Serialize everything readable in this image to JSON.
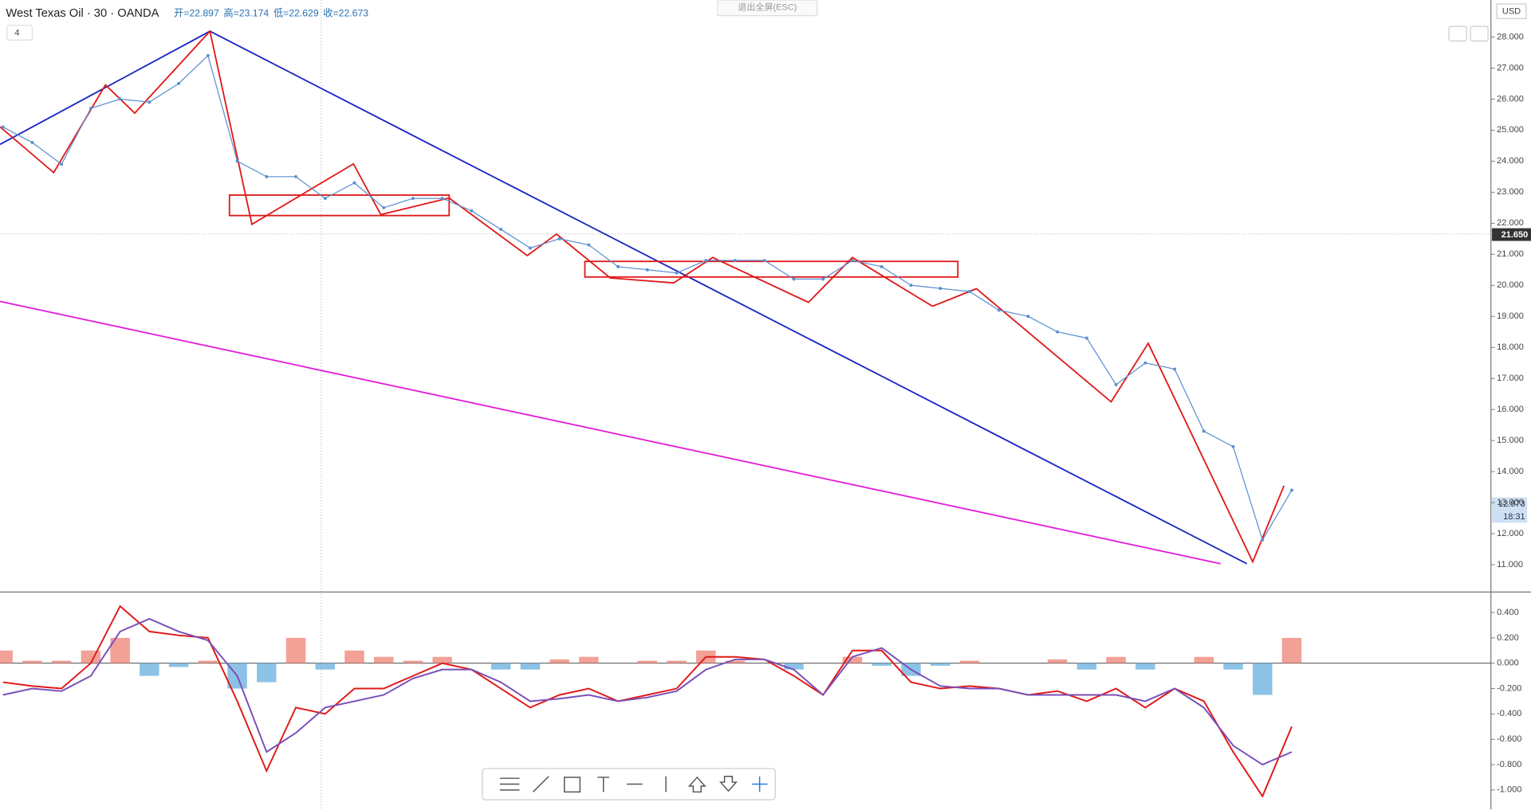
{
  "header": {
    "title": "West Texas Oil · 30 · OANDA",
    "ohlc": [
      "开=22.897",
      "高=23.174",
      "低=22.629",
      "收=22.673"
    ],
    "indicators": "4",
    "exit_fullscreen": "退出全屏(ESC)",
    "currency": "USD",
    "crosshair_price": "21.650",
    "last_price": "12.973",
    "countdown": "18:31"
  },
  "chart_data": [
    {
      "type": "line",
      "title": "West Texas Oil",
      "color": "#5b8fd1",
      "ylim": [
        10.12,
        29.19
      ],
      "yticks": [
        {
          "value": 11,
          "label": "11.000"
        },
        {
          "value": 12,
          "label": "12.000"
        },
        {
          "value": 13,
          "label": "13.000"
        },
        {
          "value": 14,
          "label": "14.000"
        },
        {
          "value": 15,
          "label": "15.000"
        },
        {
          "value": 16,
          "label": "16.000"
        },
        {
          "value": 17,
          "label": "17.000"
        },
        {
          "value": 18,
          "label": "18.000"
        },
        {
          "value": 19,
          "label": "19.000"
        },
        {
          "value": 20,
          "label": "20.000"
        },
        {
          "value": 21,
          "label": "21.000"
        },
        {
          "value": 22,
          "label": "22.000"
        },
        {
          "value": 23,
          "label": "23.000"
        },
        {
          "value": 24,
          "label": "24.000"
        },
        {
          "value": 25,
          "label": "25.000"
        },
        {
          "value": 26,
          "label": "26.000"
        },
        {
          "value": 27,
          "label": "27.000"
        },
        {
          "value": 28,
          "label": "28.000"
        }
      ],
      "values": [
        25.1,
        24.6,
        23.9,
        25.7,
        26.0,
        25.9,
        26.5,
        27.4,
        24.0,
        23.5,
        23.5,
        22.8,
        23.3,
        22.5,
        22.8,
        22.8,
        22.4,
        21.8,
        21.2,
        21.5,
        21.3,
        20.6,
        20.5,
        20.4,
        20.8,
        20.8,
        20.8,
        20.2,
        20.2,
        20.8,
        20.6,
        20.0,
        19.9,
        19.8,
        19.2,
        19.0,
        18.5,
        18.3,
        16.8,
        17.5,
        17.3,
        15.3,
        14.8,
        11.8,
        13.4
      ]
    },
    {
      "type": "macd",
      "ylim": [
        -1.154,
        0.554
      ],
      "yticks": [
        {
          "value": 0.4,
          "label": "0.400"
        },
        {
          "value": 0.2,
          "label": "0.200"
        },
        {
          "value": 0,
          "label": "0.000"
        },
        {
          "value": -0.2,
          "label": "-0.200"
        },
        {
          "value": -0.4,
          "label": "-0.400"
        },
        {
          "value": -0.6,
          "label": "-0.600"
        },
        {
          "value": -0.8,
          "label": "-0.800"
        },
        {
          "value": -1,
          "label": "-1.000"
        }
      ],
      "series": [
        {
          "color": "#e01919",
          "values": [
            -0.15,
            -0.18,
            -0.2,
            0.0,
            0.45,
            0.25,
            0.22,
            0.2,
            -0.3,
            -0.85,
            -0.35,
            -0.4,
            -0.2,
            -0.2,
            -0.1,
            0.0,
            -0.05,
            -0.2,
            -0.35,
            -0.25,
            -0.2,
            -0.3,
            -0.25,
            -0.2,
            0.05,
            0.05,
            0.03,
            -0.1,
            -0.25,
            0.1,
            0.1,
            -0.15,
            -0.2,
            -0.18,
            -0.2,
            -0.25,
            -0.22,
            -0.3,
            -0.2,
            -0.35,
            -0.2,
            -0.3,
            -0.7,
            -1.05,
            -0.5
          ]
        },
        {
          "color": "#7a4fb8",
          "values": [
            -0.25,
            -0.2,
            -0.22,
            -0.1,
            0.25,
            0.35,
            0.25,
            0.18,
            -0.1,
            -0.7,
            -0.55,
            -0.35,
            -0.3,
            -0.25,
            -0.12,
            -0.05,
            -0.05,
            -0.15,
            -0.3,
            -0.28,
            -0.25,
            -0.3,
            -0.27,
            -0.22,
            -0.05,
            0.03,
            0.03,
            -0.05,
            -0.25,
            0.05,
            0.12,
            -0.05,
            -0.18,
            -0.2,
            -0.2,
            -0.25,
            -0.25,
            -0.25,
            -0.25,
            -0.3,
            -0.2,
            -0.35,
            -0.65,
            -0.8,
            -0.7
          ]
        }
      ],
      "histogram": [
        0.1,
        0.02,
        0.02,
        0.1,
        0.2,
        -0.1,
        -0.03,
        0.02,
        -0.2,
        -0.15,
        0.2,
        -0.05,
        0.1,
        0.05,
        0.02,
        0.05,
        0,
        -0.05,
        -0.05,
        0.03,
        0.05,
        0,
        0.02,
        0.02,
        0.1,
        0.02,
        0,
        -0.05,
        0,
        0.05,
        -0.02,
        -0.1,
        -0.02,
        0.02,
        0,
        0,
        0.03,
        -0.05,
        0.05,
        -0.05,
        0,
        0.05,
        -0.05,
        -0.25,
        0.2
      ],
      "histogram_colors": [
        "#ef8a7d",
        "#6fb3e0"
      ]
    }
  ]
}
